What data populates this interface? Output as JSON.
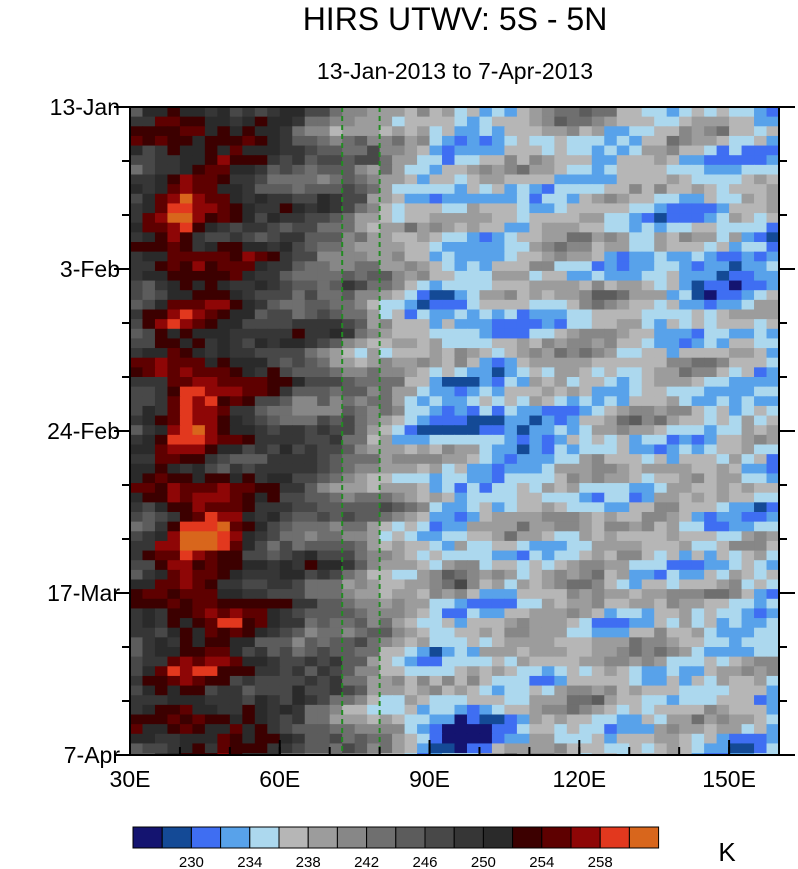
{
  "chart_data": {
    "type": "heatmap",
    "title": "HIRS UTWV: 5S - 5N",
    "subtitle": "13-Jan-2013 to 7-Apr-2013",
    "x_axis": {
      "range": [
        30,
        160
      ],
      "ticks": [
        {
          "value": 30,
          "label": "30E"
        },
        {
          "value": 60,
          "label": "60E"
        },
        {
          "value": 90,
          "label": "90E"
        },
        {
          "value": 120,
          "label": "120E"
        },
        {
          "value": 150,
          "label": "150E"
        }
      ],
      "minor_step": 10
    },
    "y_axis": {
      "range": [
        "2013-01-13",
        "2013-04-07"
      ],
      "direction": "top-to-bottom",
      "ticks": [
        {
          "date": "2013-01-13",
          "label": "13-Jan"
        },
        {
          "date": "2013-02-03",
          "label": "3-Feb"
        },
        {
          "date": "2013-02-24",
          "label": "24-Feb"
        },
        {
          "date": "2013-03-17",
          "label": "17-Mar"
        },
        {
          "date": "2013-04-07",
          "label": "7-Apr"
        }
      ],
      "minor_step_days": 7
    },
    "reference_lines": [
      {
        "orientation": "vertical",
        "x": 72.5,
        "color": "#228b22",
        "style": "dashed"
      },
      {
        "orientation": "vertical",
        "x": 80,
        "color": "#228b22",
        "style": "dashed"
      }
    ],
    "colorbar": {
      "orientation": "horizontal",
      "unit": "K",
      "levels": [
        228,
        230,
        232,
        234,
        236,
        238,
        240,
        242,
        244,
        246,
        248,
        250,
        252,
        254,
        256,
        258,
        260
      ],
      "labeled_levels": [
        "230",
        "234",
        "238",
        "242",
        "246",
        "250",
        "254",
        "258"
      ],
      "colors": [
        "#141470",
        "#144a96",
        "#3f6ef2",
        "#58a2ea",
        "#acd8ee",
        "#b6b6b6",
        "#9c9c9c",
        "#878787",
        "#6f6f6f",
        "#5c5c5c",
        "#484848",
        "#363636",
        "#2a2a2a",
        "#3c0000",
        "#5e0000",
        "#8e0606",
        "#e2381e",
        "#d8661c"
      ]
    },
    "field_description": {
      "west_of_70E": "warm dry values 244-256 K with bands of maxima near 40-50E",
      "east_of_85E": "moist cold values 232-240 K, minima near 95E and 150-160E"
    }
  }
}
